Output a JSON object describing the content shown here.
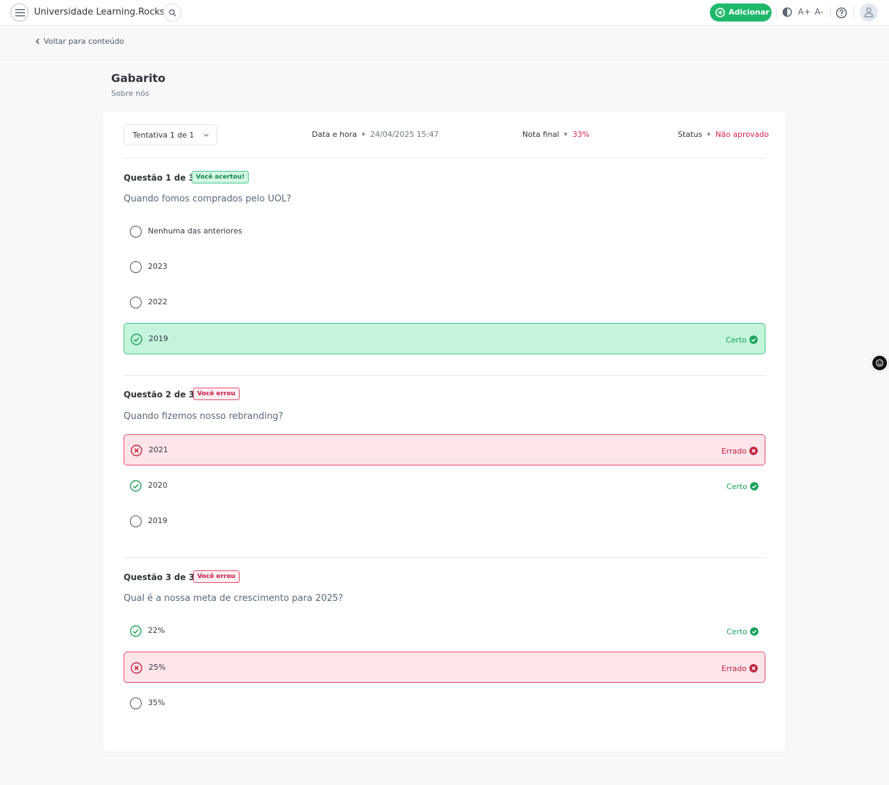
{
  "topbar": {
    "title": "Universidade Learning.Rocks",
    "add_label": "Adicionar",
    "font_increase": "A+",
    "font_decrease": "A-",
    "accent": "#1fb86a"
  },
  "back_link": "Voltar para conteúdo",
  "page": {
    "title": "Gabarito",
    "subtitle": "Sobre nós"
  },
  "summary": {
    "attempt": "Tentativa 1 de 1",
    "date_label": "Data e hora",
    "date_value": "24/04/2025 15:47",
    "grade_label": "Nota final",
    "grade_value": "33%",
    "status_label": "Status",
    "status_value": "Não aprovado"
  },
  "questions": [
    {
      "label": "Questão 1 de 3",
      "badge": "Você acertou!",
      "text": "Quando fomos comprados pelo UOL?",
      "options": [
        {
          "text": "Nenhuma das anteriores",
          "state": "neutral",
          "result": ""
        },
        {
          "text": "2023",
          "state": "neutral",
          "result": ""
        },
        {
          "text": "2022",
          "state": "neutral",
          "result": ""
        },
        {
          "text": "2019",
          "state": "correct-selected",
          "result": "Certo"
        }
      ]
    },
    {
      "label": "Questão 2 de 3",
      "badge": "Você errou",
      "text": "Quando fizemos nosso rebranding?",
      "options": [
        {
          "text": "2021",
          "state": "wrong-selected",
          "result": "Errado"
        },
        {
          "text": "2020",
          "state": "correct",
          "result": "Certo"
        },
        {
          "text": "2019",
          "state": "neutral",
          "result": ""
        }
      ]
    },
    {
      "label": "Questão 3 de 3",
      "badge": "Você errou",
      "text": "Qual é a nossa meta de crescimento para 2025?",
      "options": [
        {
          "text": "22%",
          "state": "correct",
          "result": "Certo"
        },
        {
          "text": "25%",
          "state": "wrong-selected",
          "result": "Errado"
        },
        {
          "text": "35%",
          "state": "neutral",
          "result": ""
        }
      ]
    }
  ],
  "icons": {
    "menu": "hamburger-menu-icon",
    "search": "search-icon",
    "add": "plus-circle-icon",
    "contrast": "contrast-icon",
    "help": "question-circle-icon",
    "avatar": "user-icon",
    "back": "chevron-left-icon",
    "feedback": "smiley-icon"
  }
}
